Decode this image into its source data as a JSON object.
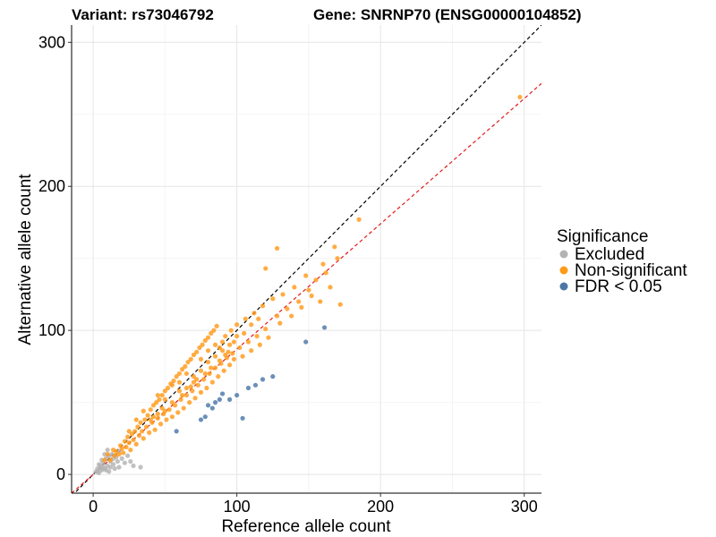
{
  "chart_data": {
    "type": "scatter",
    "title_left": "Variant: rs73046792",
    "title_right": "Gene: SNRNP70 (ENSG00000104852)",
    "xlabel": "Reference allele count",
    "ylabel": "Alternative allele count",
    "xlim": [
      -15,
      312
    ],
    "ylim": [
      -13,
      312
    ],
    "x_ticks": [
      0,
      100,
      200,
      300
    ],
    "y_ticks": [
      0,
      100,
      200,
      300
    ],
    "grid": true,
    "legend": {
      "title": "Significance",
      "placement": "right",
      "entries": [
        "Excluded",
        "Non-significant",
        "FDR < 0.05"
      ]
    },
    "colors": {
      "Excluded": "#b3b3b3",
      "Non-significant": "#ff9a1a",
      "FDR < 0.05": "#4a77a8",
      "identity_line": "#000000",
      "fit_line": "#e41a1c"
    },
    "reference_lines": [
      {
        "name": "identity",
        "slope": 1.0,
        "intercept": 0
      },
      {
        "name": "fit",
        "slope": 0.87,
        "intercept": 0
      }
    ],
    "series": [
      {
        "name": "Excluded",
        "points": [
          [
            2,
            2
          ],
          [
            3,
            4
          ],
          [
            4,
            1
          ],
          [
            5,
            6
          ],
          [
            6,
            3
          ],
          [
            7,
            8
          ],
          [
            8,
            4
          ],
          [
            9,
            11
          ],
          [
            10,
            6
          ],
          [
            11,
            2
          ],
          [
            12,
            9
          ],
          [
            13,
            14
          ],
          [
            14,
            7
          ],
          [
            15,
            4
          ],
          [
            16,
            12
          ],
          [
            17,
            9
          ],
          [
            18,
            5
          ],
          [
            20,
            11
          ],
          [
            22,
            8
          ],
          [
            24,
            13
          ],
          [
            26,
            9
          ],
          [
            28,
            6
          ],
          [
            6,
            10
          ],
          [
            4,
            7
          ],
          [
            9,
            3
          ],
          [
            12,
            5
          ],
          [
            14,
            11
          ],
          [
            3,
            2
          ],
          [
            7,
            5
          ],
          [
            11,
            13
          ],
          [
            33,
            5
          ],
          [
            10,
            17
          ],
          [
            8,
            14
          ],
          [
            18,
            16
          ],
          [
            5,
            4
          ]
        ]
      },
      {
        "name": "Non-significant",
        "points": [
          [
            8,
            10
          ],
          [
            10,
            14
          ],
          [
            12,
            10
          ],
          [
            14,
            17
          ],
          [
            15,
            13
          ],
          [
            16,
            16
          ],
          [
            18,
            14
          ],
          [
            19,
            20
          ],
          [
            20,
            18
          ],
          [
            21,
            15
          ],
          [
            22,
            23
          ],
          [
            23,
            19
          ],
          [
            24,
            26
          ],
          [
            25,
            22
          ],
          [
            26,
            17
          ],
          [
            27,
            28
          ],
          [
            28,
            24
          ],
          [
            29,
            30
          ],
          [
            30,
            21
          ],
          [
            31,
            33
          ],
          [
            32,
            27
          ],
          [
            33,
            36
          ],
          [
            34,
            30
          ],
          [
            35,
            25
          ],
          [
            36,
            38
          ],
          [
            37,
            33
          ],
          [
            38,
            41
          ],
          [
            39,
            29
          ],
          [
            40,
            45
          ],
          [
            41,
            36
          ],
          [
            42,
            48
          ],
          [
            43,
            31
          ],
          [
            44,
            50
          ],
          [
            45,
            39
          ],
          [
            46,
            52
          ],
          [
            47,
            35
          ],
          [
            48,
            55
          ],
          [
            49,
            42
          ],
          [
            50,
            58
          ],
          [
            51,
            38
          ],
          [
            52,
            60
          ],
          [
            53,
            45
          ],
          [
            54,
            63
          ],
          [
            55,
            40
          ],
          [
            56,
            65
          ],
          [
            57,
            48
          ],
          [
            58,
            68
          ],
          [
            59,
            43
          ],
          [
            60,
            70
          ],
          [
            61,
            52
          ],
          [
            62,
            73
          ],
          [
            63,
            46
          ],
          [
            64,
            75
          ],
          [
            65,
            55
          ],
          [
            66,
            78
          ],
          [
            67,
            50
          ],
          [
            68,
            80
          ],
          [
            69,
            58
          ],
          [
            70,
            83
          ],
          [
            71,
            53
          ],
          [
            72,
            85
          ],
          [
            73,
            62
          ],
          [
            74,
            88
          ],
          [
            75,
            57
          ],
          [
            76,
            90
          ],
          [
            77,
            66
          ],
          [
            78,
            93
          ],
          [
            79,
            60
          ],
          [
            80,
            95
          ],
          [
            81,
            70
          ],
          [
            82,
            98
          ],
          [
            83,
            64
          ],
          [
            84,
            100
          ],
          [
            85,
            74
          ],
          [
            86,
            103
          ],
          [
            87,
            68
          ],
          [
            88,
            88
          ],
          [
            89,
            77
          ],
          [
            90,
            92
          ],
          [
            91,
            72
          ],
          [
            92,
            96
          ],
          [
            93,
            81
          ],
          [
            94,
            85
          ],
          [
            95,
            76
          ],
          [
            96,
            100
          ],
          [
            97,
            84
          ],
          [
            98,
            80
          ],
          [
            100,
            104
          ],
          [
            102,
            88
          ],
          [
            104,
            82
          ],
          [
            106,
            108
          ],
          [
            108,
            92
          ],
          [
            110,
            86
          ],
          [
            112,
            112
          ],
          [
            114,
            96
          ],
          [
            116,
            90
          ],
          [
            118,
            117
          ],
          [
            120,
            101
          ],
          [
            122,
            95
          ],
          [
            125,
            122
          ],
          [
            128,
            110
          ],
          [
            130,
            105
          ],
          [
            132,
            125
          ],
          [
            135,
            115
          ],
          [
            138,
            110
          ],
          [
            140,
            130
          ],
          [
            143,
            120
          ],
          [
            145,
            116
          ],
          [
            148,
            138
          ],
          [
            150,
            128
          ],
          [
            152,
            124
          ],
          [
            155,
            135
          ],
          [
            158,
            120
          ],
          [
            160,
            146
          ],
          [
            162,
            140
          ],
          [
            165,
            130
          ],
          [
            168,
            158
          ],
          [
            170,
            150
          ],
          [
            45,
            55
          ],
          [
            50,
            44
          ],
          [
            55,
            62
          ],
          [
            60,
            58
          ],
          [
            65,
            60
          ],
          [
            70,
            68
          ],
          [
            75,
            72
          ],
          [
            80,
            78
          ],
          [
            85,
            82
          ],
          [
            90,
            86
          ],
          [
            35,
            44
          ],
          [
            40,
            38
          ],
          [
            30,
            38
          ],
          [
            25,
            30
          ],
          [
            60,
            64
          ],
          [
            65,
            70
          ],
          [
            70,
            64
          ],
          [
            75,
            80
          ],
          [
            80,
            86
          ],
          [
            85,
            90
          ],
          [
            55,
            50
          ],
          [
            50,
            52
          ],
          [
            45,
            42
          ],
          [
            95,
            90
          ],
          [
            100,
            96
          ],
          [
            105,
            98
          ],
          [
            110,
            104
          ],
          [
            115,
            108
          ],
          [
            62,
            55
          ],
          [
            68,
            61
          ],
          [
            72,
            66
          ],
          [
            78,
            70
          ],
          [
            82,
            74
          ],
          [
            88,
            79
          ],
          [
            92,
            83
          ],
          [
            98,
            92
          ],
          [
            42,
            40
          ],
          [
            48,
            46
          ],
          [
            185,
            177
          ],
          [
            128,
            157
          ],
          [
            297,
            262
          ],
          [
            172,
            118
          ],
          [
            120,
            143
          ]
        ]
      },
      {
        "name": "FDR < 0.05",
        "points": [
          [
            58,
            30
          ],
          [
            75,
            38
          ],
          [
            78,
            40
          ],
          [
            83,
            46
          ],
          [
            85,
            50
          ],
          [
            88,
            52
          ],
          [
            90,
            56
          ],
          [
            95,
            52
          ],
          [
            100,
            55
          ],
          [
            104,
            39
          ],
          [
            108,
            60
          ],
          [
            113,
            62
          ],
          [
            118,
            66
          ],
          [
            125,
            68
          ],
          [
            148,
            92
          ],
          [
            161,
            102
          ],
          [
            80,
            48
          ]
        ]
      }
    ]
  }
}
